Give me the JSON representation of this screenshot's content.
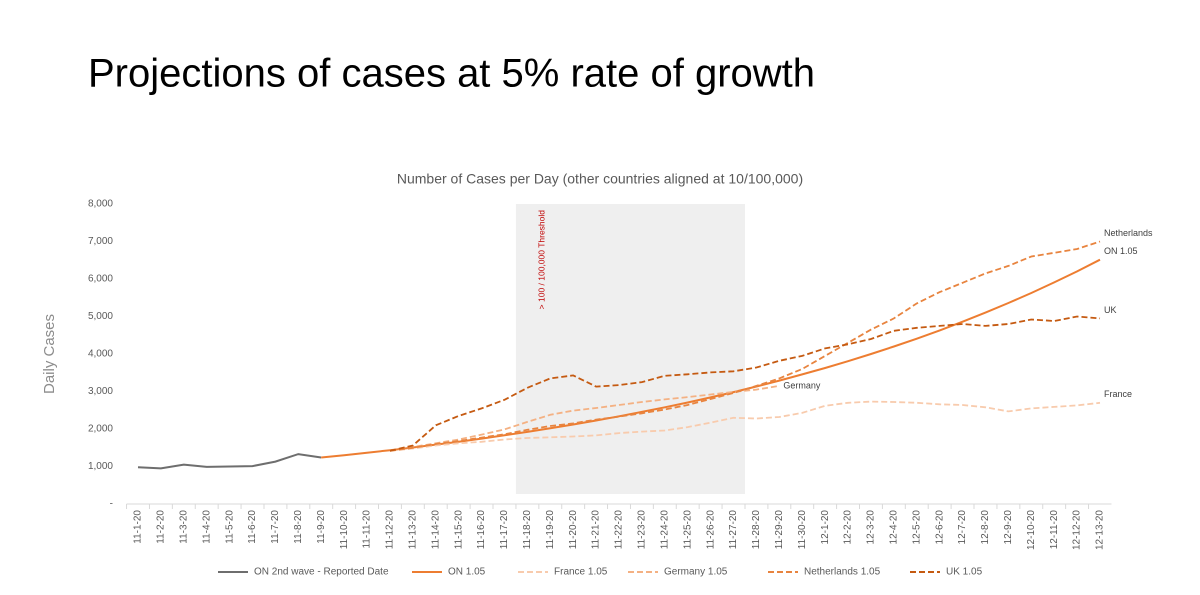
{
  "page_title": "Projections of cases at 5% rate of growth",
  "chart_data": {
    "type": "line",
    "title": "Number of Cases per Day (other countries aligned at 10/100,000)",
    "y_label": "Daily Cases",
    "categories": [
      "11-1-20",
      "11-2-20",
      "11-3-20",
      "11-4-20",
      "11-5-20",
      "11-6-20",
      "11-7-20",
      "11-8-20",
      "11-9-20",
      "11-10-20",
      "11-11-20",
      "11-12-20",
      "11-13-20",
      "11-14-20",
      "11-15-20",
      "11-16-20",
      "11-17-20",
      "11-18-20",
      "11-19-20",
      "11-20-20",
      "11-21-20",
      "11-22-20",
      "11-23-20",
      "11-24-20",
      "11-25-20",
      "11-26-20",
      "11-27-20",
      "11-28-20",
      "11-29-20",
      "11-30-20",
      "12-1-20",
      "12-2-20",
      "12-3-20",
      "12-4-20",
      "12-5-20",
      "12-6-20",
      "12-7-20",
      "12-8-20",
      "12-9-20",
      "12-10-20",
      "12-11-20",
      "12-12-20",
      "12-13-20"
    ],
    "ylim": [
      0,
      8000
    ],
    "yticks": [
      {
        "value": 0,
        "label": "-"
      },
      {
        "value": 1000,
        "label": "1,000"
      },
      {
        "value": 2000,
        "label": "2,000"
      },
      {
        "value": 3000,
        "label": "3,000"
      },
      {
        "value": 4000,
        "label": "4,000"
      },
      {
        "value": 5000,
        "label": "5,000"
      },
      {
        "value": 6000,
        "label": "6,000"
      },
      {
        "value": 7000,
        "label": "7,000"
      },
      {
        "value": 8000,
        "label": "8,000"
      }
    ],
    "grid": false,
    "legend": "bottom",
    "threshold_band": {
      "label": "> 100 / 100,000 Threshold",
      "from": "11-18-20",
      "to": "11-28-20"
    },
    "series": [
      {
        "name": "ON 2nd wave - Reported Date",
        "color": "#6e6e6e",
        "dashed": false,
        "values": [
          980,
          950,
          1050,
          990,
          1000,
          1010,
          1130,
          1330,
          1240,
          null,
          null,
          null,
          null,
          null,
          null,
          null,
          null,
          null,
          null,
          null,
          null,
          null,
          null,
          null,
          null,
          null,
          null,
          null,
          null,
          null,
          null,
          null,
          null,
          null,
          null,
          null,
          null,
          null,
          null,
          null,
          null,
          null,
          null
        ]
      },
      {
        "name": "ON 1.05",
        "color": "#ed7d31",
        "dashed": false,
        "values": [
          null,
          null,
          null,
          null,
          null,
          null,
          null,
          null,
          1240,
          1302,
          1367,
          1435,
          1507,
          1583,
          1662,
          1745,
          1832,
          1924,
          2020,
          2121,
          2227,
          2338,
          2455,
          2578,
          2707,
          2842,
          2984,
          3133,
          3290,
          3455,
          3627,
          3809,
          3999,
          4199,
          4409,
          4629,
          4861,
          5104,
          5359,
          5627,
          5908,
          6204,
          6514
        ]
      },
      {
        "name": "France 1.05",
        "color": "#f8cbad",
        "dashed": true,
        "end_label": "France",
        "values": [
          null,
          null,
          null,
          null,
          null,
          null,
          null,
          null,
          null,
          null,
          null,
          1420,
          1480,
          1560,
          1620,
          1660,
          1720,
          1760,
          1780,
          1800,
          1830,
          1890,
          1930,
          1960,
          2050,
          2170,
          2300,
          2280,
          2320,
          2430,
          2620,
          2700,
          2730,
          2720,
          2700,
          2660,
          2640,
          2580,
          2470,
          2550,
          2590,
          2630,
          2700
        ]
      },
      {
        "name": "Germany 1.05",
        "color": "#f4b183",
        "dashed": true,
        "end_label": "Germany",
        "values": [
          null,
          null,
          null,
          null,
          null,
          null,
          null,
          null,
          null,
          null,
          null,
          1420,
          1520,
          1620,
          1720,
          1850,
          1990,
          2190,
          2380,
          2490,
          2560,
          2640,
          2720,
          2790,
          2850,
          2920,
          2990,
          3050,
          3150,
          null,
          null,
          null,
          null,
          null,
          null,
          null,
          null,
          null,
          null,
          null,
          null,
          null,
          null
        ]
      },
      {
        "name": "Netherlands 1.05",
        "color": "#e8843f",
        "dashed": true,
        "end_label": "Netherlands",
        "values": [
          null,
          null,
          null,
          null,
          null,
          null,
          null,
          null,
          null,
          null,
          null,
          1420,
          1500,
          1600,
          1680,
          1770,
          1860,
          1980,
          2080,
          2150,
          2250,
          2330,
          2420,
          2520,
          2640,
          2800,
          2960,
          3150,
          3350,
          3600,
          3950,
          4300,
          4650,
          4950,
          5350,
          5650,
          5900,
          6150,
          6350,
          6600,
          6700,
          6800,
          7000
        ]
      },
      {
        "name": "UK 1.05",
        "color": "#c55a11",
        "dashed": true,
        "end_label": "UK",
        "values": [
          null,
          null,
          null,
          null,
          null,
          null,
          null,
          null,
          null,
          null,
          null,
          1420,
          1560,
          2100,
          2350,
          2550,
          2780,
          3100,
          3350,
          3430,
          3130,
          3170,
          3250,
          3420,
          3460,
          3510,
          3540,
          3640,
          3820,
          3950,
          4150,
          4260,
          4400,
          4620,
          4700,
          4750,
          4800,
          4750,
          4800,
          4920,
          4880,
          5000,
          4950
        ]
      }
    ]
  }
}
